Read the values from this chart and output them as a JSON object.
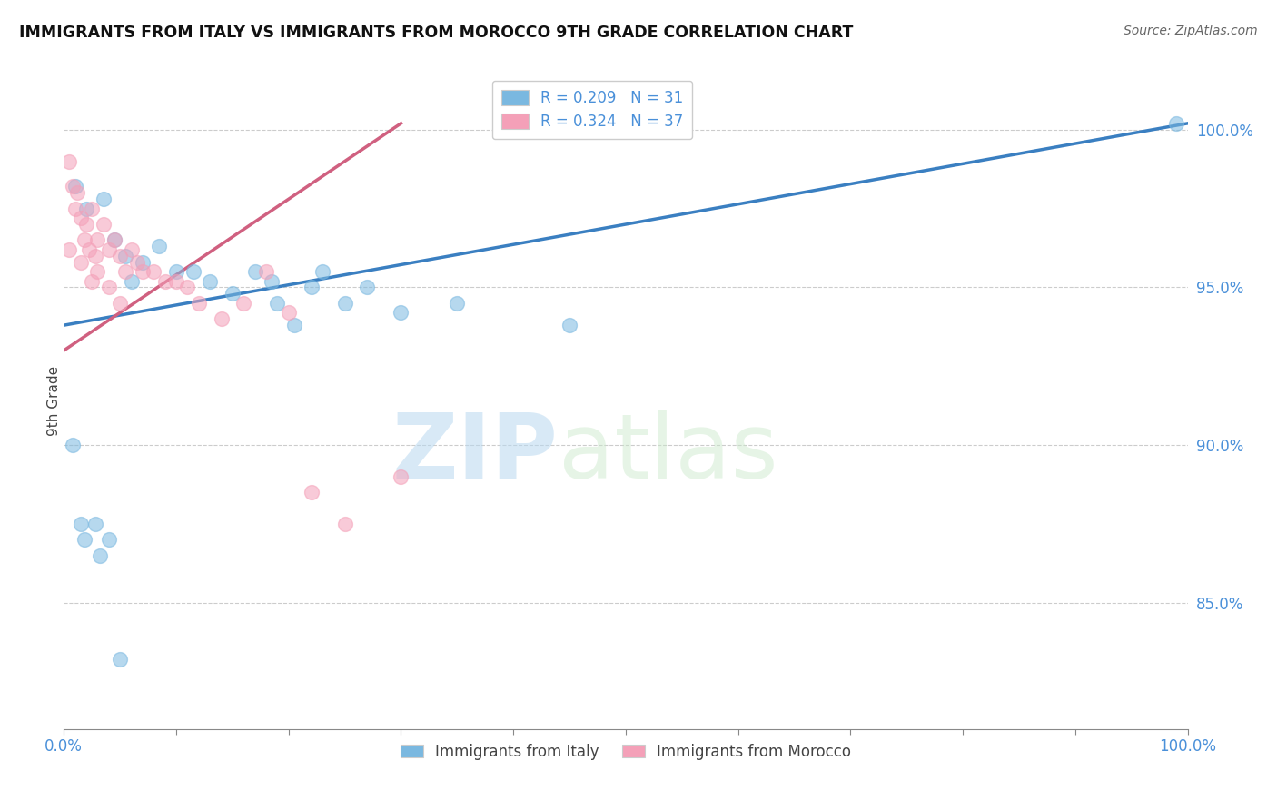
{
  "title": "IMMIGRANTS FROM ITALY VS IMMIGRANTS FROM MOROCCO 9TH GRADE CORRELATION CHART",
  "source": "Source: ZipAtlas.com",
  "ylabel": "9th Grade",
  "legend_label_1": "Immigrants from Italy",
  "legend_label_2": "Immigrants from Morocco",
  "R1": 0.209,
  "N1": 31,
  "R2": 0.324,
  "N2": 37,
  "color_blue": "#7ab8e0",
  "color_pink": "#f4a0b8",
  "color_blue_line": "#3a7fc1",
  "color_pink_line": "#d06080",
  "xlim": [
    0.0,
    100.0
  ],
  "ylim": [
    81.0,
    101.8
  ],
  "yticks": [
    85.0,
    90.0,
    95.0,
    100.0
  ],
  "blue_x": [
    1.0,
    2.0,
    3.5,
    4.5,
    5.5,
    6.0,
    7.0,
    8.5,
    10.0,
    11.5,
    13.0,
    15.0,
    17.0,
    18.5,
    19.0,
    20.5,
    22.0,
    23.0,
    25.0,
    27.0,
    30.0,
    35.0,
    45.0,
    99.0
  ],
  "blue_y": [
    98.2,
    97.5,
    97.8,
    96.5,
    96.0,
    95.2,
    95.8,
    96.3,
    95.5,
    95.5,
    95.2,
    94.8,
    95.5,
    95.2,
    94.5,
    93.8,
    95.0,
    95.5,
    94.5,
    95.0,
    94.2,
    94.5,
    93.8,
    100.2
  ],
  "blue_x2": [
    0.8,
    1.5,
    1.8,
    2.8,
    3.2,
    4.0,
    5.0
  ],
  "blue_y2": [
    90.0,
    87.5,
    87.0,
    87.5,
    86.5,
    87.0,
    83.2
  ],
  "pink_x": [
    0.5,
    0.8,
    1.0,
    1.2,
    1.5,
    1.8,
    2.0,
    2.2,
    2.5,
    2.8,
    3.0,
    3.5,
    4.0,
    4.5,
    5.0,
    5.5,
    6.0,
    6.5,
    7.0,
    8.0,
    9.0,
    10.0,
    11.0,
    12.0,
    14.0,
    16.0,
    18.0,
    20.0,
    22.0,
    25.0,
    30.0
  ],
  "pink_y": [
    99.0,
    98.2,
    97.5,
    98.0,
    97.2,
    96.5,
    97.0,
    96.2,
    97.5,
    96.0,
    96.5,
    97.0,
    96.2,
    96.5,
    96.0,
    95.5,
    96.2,
    95.8,
    95.5,
    95.5,
    95.2,
    95.2,
    95.0,
    94.5,
    94.0,
    94.5,
    95.5,
    94.2,
    88.5,
    87.5,
    89.0
  ],
  "pink_x2": [
    0.5,
    1.5,
    2.5,
    3.0,
    4.0,
    5.0
  ],
  "pink_y2": [
    96.2,
    95.8,
    95.2,
    95.5,
    95.0,
    94.5
  ],
  "blue_trendline_x": [
    0.0,
    100.0
  ],
  "blue_trendline_y": [
    93.8,
    100.2
  ],
  "pink_trendline_x": [
    0.0,
    30.0
  ],
  "pink_trendline_y": [
    93.0,
    100.2
  ],
  "watermark_zip": "ZIP",
  "watermark_atlas": "atlas",
  "background_color": "#ffffff"
}
